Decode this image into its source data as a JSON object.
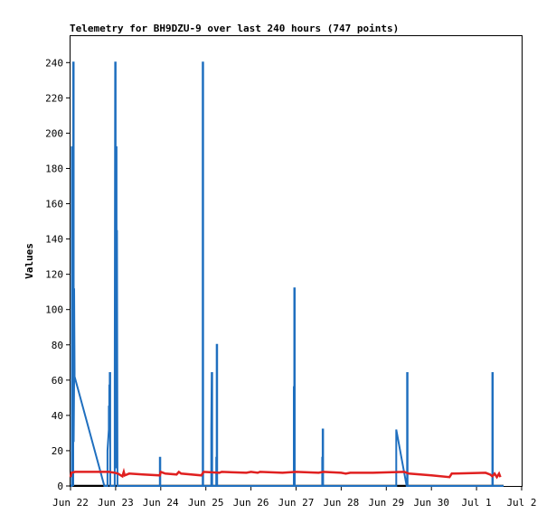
{
  "chart_data": {
    "type": "line",
    "title": "Telemetry for BH9DZU-9 over last 240 hours (747 points)",
    "xlabel": "",
    "ylabel": "Values",
    "x_tick_labels": [
      "Jun 22",
      "Jun 23",
      "Jun 24",
      "Jun 25",
      "Jun 26",
      "Jun 27",
      "Jun 28",
      "Jun 29",
      "Jun 30",
      "Jul 1",
      "Jul 2"
    ],
    "x_ticks_days": [
      0,
      1,
      2,
      3,
      4,
      5,
      6,
      7,
      8,
      9,
      10
    ],
    "xlim_days": [
      0,
      10
    ],
    "y_ticks": [
      0,
      20,
      40,
      60,
      80,
      100,
      120,
      140,
      160,
      180,
      200,
      220,
      240
    ],
    "ylim": [
      0,
      255
    ],
    "grid": false,
    "series": [
      {
        "color": "#1f6fbf",
        "points": [
          [
            -0.15,
            0
          ],
          [
            0.0,
            0
          ],
          [
            0.03,
            0
          ],
          [
            0.03,
            192
          ],
          [
            0.04,
            192
          ],
          [
            0.04,
            65
          ],
          [
            0.05,
            15
          ],
          [
            0.05,
            65
          ],
          [
            0.06,
            0
          ],
          [
            0.06,
            240
          ],
          [
            0.07,
            240
          ],
          [
            0.07,
            25
          ],
          [
            0.08,
            60
          ],
          [
            0.08,
            112
          ],
          [
            0.09,
            65
          ],
          [
            0.09,
            62
          ],
          [
            0.75,
            0
          ],
          [
            0.82,
            0
          ],
          [
            0.82,
            20
          ],
          [
            0.85,
            32
          ],
          [
            0.85,
            45
          ],
          [
            0.86,
            45
          ],
          [
            0.86,
            57
          ],
          [
            0.87,
            57
          ],
          [
            0.87,
            64
          ],
          [
            0.88,
            64
          ],
          [
            0.88,
            0
          ],
          [
            0.98,
            0
          ],
          [
            0.98,
            60
          ],
          [
            0.99,
            240
          ],
          [
            1.0,
            240
          ],
          [
            1.0,
            10
          ],
          [
            1.01,
            192
          ],
          [
            1.02,
            192
          ],
          [
            1.02,
            10
          ],
          [
            1.03,
            145
          ],
          [
            1.04,
            10
          ],
          [
            1.04,
            0
          ],
          [
            1.98,
            0
          ],
          [
            1.98,
            16
          ],
          [
            1.99,
            16
          ],
          [
            1.99,
            0
          ],
          [
            2.93,
            0
          ],
          [
            2.93,
            240
          ],
          [
            2.94,
            240
          ],
          [
            2.94,
            0
          ],
          [
            3.12,
            0
          ],
          [
            3.12,
            32
          ],
          [
            3.13,
            64
          ],
          [
            3.14,
            64
          ],
          [
            3.14,
            0
          ],
          [
            3.23,
            0
          ],
          [
            3.23,
            16
          ],
          [
            3.24,
            16
          ],
          [
            3.24,
            80
          ],
          [
            3.25,
            80
          ],
          [
            3.25,
            0
          ],
          [
            4.95,
            0
          ],
          [
            4.95,
            56
          ],
          [
            4.96,
            56
          ],
          [
            4.96,
            112
          ],
          [
            4.97,
            112
          ],
          [
            4.97,
            0
          ],
          [
            5.58,
            0
          ],
          [
            5.58,
            16
          ],
          [
            5.59,
            16
          ],
          [
            5.59,
            32
          ],
          [
            5.6,
            32
          ],
          [
            5.6,
            0
          ],
          [
            7.22,
            0
          ],
          [
            7.22,
            32
          ],
          [
            7.45,
            0
          ],
          [
            7.46,
            0
          ],
          [
            7.46,
            64
          ],
          [
            7.47,
            64
          ],
          [
            7.47,
            0
          ],
          [
            9.35,
            0
          ],
          [
            9.35,
            64
          ],
          [
            9.36,
            64
          ],
          [
            9.36,
            0
          ],
          [
            9.6,
            0
          ]
        ]
      },
      {
        "color": "#e02020",
        "points": [
          [
            0.0,
            5.0
          ],
          [
            0.02,
            7.5
          ],
          [
            0.1,
            8.0
          ],
          [
            0.5,
            8.0
          ],
          [
            0.85,
            8.0
          ],
          [
            0.98,
            7.5
          ],
          [
            1.05,
            7.0
          ],
          [
            1.15,
            5.5
          ],
          [
            1.18,
            8.0
          ],
          [
            1.2,
            6.0
          ],
          [
            1.3,
            7.0
          ],
          [
            1.6,
            6.5
          ],
          [
            1.98,
            6.0
          ],
          [
            2.0,
            8.0
          ],
          [
            2.1,
            7.0
          ],
          [
            2.35,
            6.5
          ],
          [
            2.4,
            8.0
          ],
          [
            2.45,
            7.0
          ],
          [
            2.9,
            6.0
          ],
          [
            2.95,
            8.0
          ],
          [
            3.3,
            7.5
          ],
          [
            3.35,
            8.0
          ],
          [
            3.9,
            7.5
          ],
          [
            4.0,
            8.0
          ],
          [
            4.15,
            7.5
          ],
          [
            4.2,
            8.0
          ],
          [
            4.7,
            7.5
          ],
          [
            5.0,
            8.0
          ],
          [
            5.5,
            7.5
          ],
          [
            5.6,
            8.0
          ],
          [
            6.0,
            7.5
          ],
          [
            6.1,
            7.0
          ],
          [
            6.2,
            7.5
          ],
          [
            6.7,
            7.5
          ],
          [
            7.4,
            8.0
          ],
          [
            7.5,
            7.0
          ],
          [
            8.0,
            6.0
          ],
          [
            8.4,
            5.0
          ],
          [
            8.45,
            7.0
          ],
          [
            8.5,
            7.0
          ],
          [
            9.2,
            7.5
          ],
          [
            9.3,
            6.5
          ],
          [
            9.35,
            5.5
          ],
          [
            9.4,
            7.0
          ],
          [
            9.45,
            5.0
          ],
          [
            9.5,
            7.0
          ],
          [
            9.53,
            5.0
          ]
        ]
      }
    ]
  }
}
